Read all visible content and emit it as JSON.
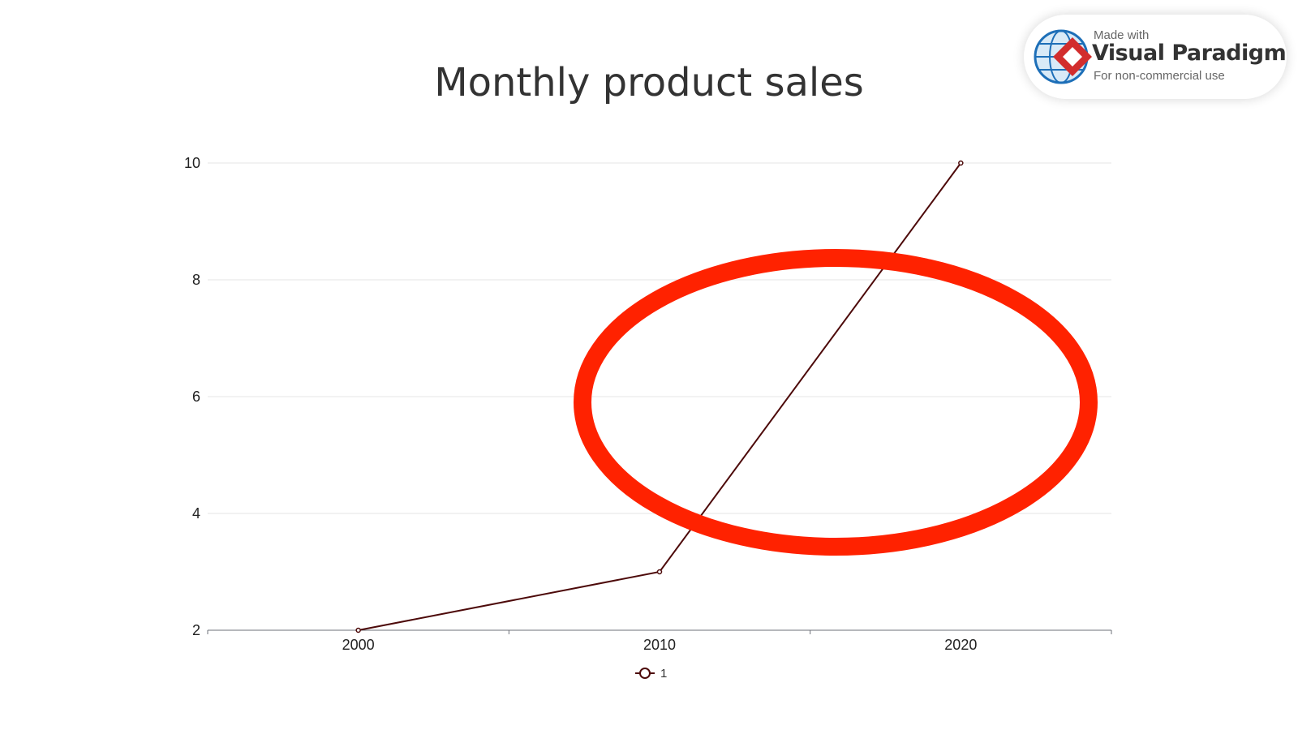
{
  "chart_data": {
    "type": "line",
    "title": "Monthly product sales",
    "x": [
      "2000",
      "2010",
      "2020"
    ],
    "series": [
      {
        "name": "1",
        "values": [
          2,
          3,
          10
        ],
        "color": "#4d0a0a"
      }
    ],
    "ylim": [
      2,
      10
    ],
    "yticks": [
      2,
      4,
      6,
      8,
      10
    ],
    "grid": "horizontal",
    "legend_position": "bottom-center",
    "annotation": {
      "shape": "ellipse",
      "color": "#ff2200"
    }
  },
  "watermark": {
    "made_with": "Made with",
    "brand": "Visual Paradigm",
    "note": "For non-commercial use",
    "icon": "visual-paradigm-logo"
  }
}
